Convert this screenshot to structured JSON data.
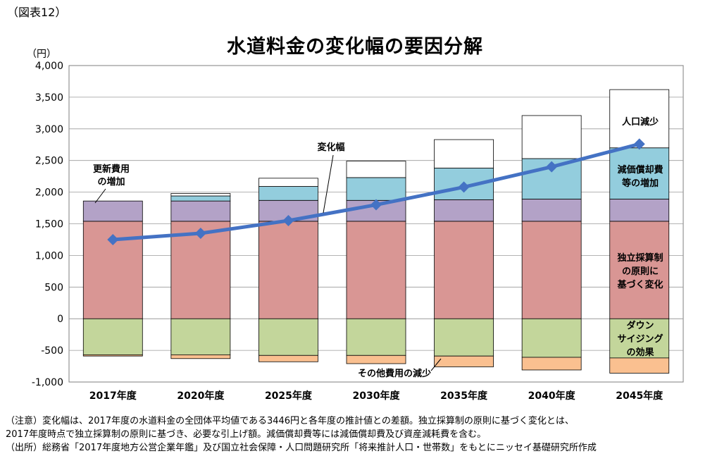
{
  "figure_label": "（図表12）",
  "notes": {
    "line1": "（注意）変化幅は、2017年度の水道料金の全団体平均値である3446円と各年度の推計値との差額。独立採算制の原則に基づく変化とは、",
    "line2": "2017年度時点で独立採算制の原則に基づき、必要な引上げ額。減価償却費等には減価償却費及び資産減耗費を含む。",
    "line3": "（出所）総務省「2017年度地方公営企業年鑑」及び国立社会保障・人口問題研究所「将来推計人口・世帯数」をもとにニッセイ基礎研究所作成"
  },
  "chart_data": {
    "type": "bar",
    "title": "水道料金の変化幅の要因分解",
    "ylabel": "（円）",
    "ylim": [
      -1000,
      4000
    ],
    "yticks": [
      4000,
      3500,
      3000,
      2500,
      2000,
      1500,
      1000,
      500,
      0,
      -500,
      -1000
    ],
    "ytick_labels": [
      "4,000",
      "3,500",
      "3,000",
      "2,500",
      "2,000",
      "1,500",
      "1,000",
      "500",
      "0",
      "-500",
      "-1,000"
    ],
    "categories": [
      "2017年度",
      "2020年度",
      "2025年度",
      "2030年度",
      "2035年度",
      "2040年度",
      "2045年度"
    ],
    "series": [
      {
        "key": "downsizing",
        "color": "#c3d69b",
        "values": [
          -570,
          -570,
          -580,
          -580,
          -590,
          -610,
          -620
        ]
      },
      {
        "key": "other",
        "color": "#fac090",
        "values": [
          -20,
          -60,
          -100,
          -130,
          -170,
          -200,
          -240
        ]
      },
      {
        "key": "independent",
        "color": "#d99694",
        "values": [
          1540,
          1540,
          1540,
          1540,
          1540,
          1540,
          1540
        ]
      },
      {
        "key": "renewal",
        "color": "#b3a2c7",
        "values": [
          320,
          320,
          330,
          330,
          340,
          350,
          350
        ]
      },
      {
        "key": "depreciation",
        "color": "#93cddd",
        "values": [
          0,
          80,
          220,
          360,
          500,
          640,
          810
        ]
      },
      {
        "key": "population",
        "color": "#ffffff",
        "values": [
          0,
          40,
          130,
          260,
          450,
          680,
          920
        ]
      }
    ],
    "line": {
      "color": "#4472c4",
      "values": [
        1250,
        1350,
        1550,
        1800,
        2080,
        2400,
        2760
      ]
    },
    "annotations": {
      "renewal": {
        "line1": "更新費用",
        "line2": "の増加"
      },
      "change": "変化幅",
      "population": "人口減少",
      "depreciation": {
        "line1": "減価償却費",
        "line2": "等の増加"
      },
      "independent": {
        "line1": "独立採算制",
        "line2": "の原則に",
        "line3": "基づく変化"
      },
      "downsizing": {
        "line1": "ダウン",
        "line2": "サイジング",
        "line3": "の効果"
      },
      "other": "その他費用の減少"
    }
  }
}
